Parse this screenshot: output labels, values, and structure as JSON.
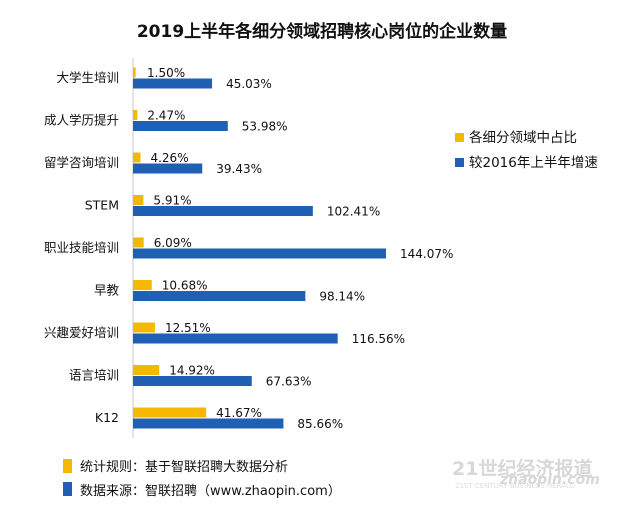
{
  "chart_data": {
    "type": "bar",
    "orientation": "horizontal",
    "title": "2019上半年各细分领域招聘核心岗位的企业数量",
    "categories": [
      "大学生培训",
      "成人学历提升",
      "留学咨询培训",
      "STEM",
      "职业技能培训",
      "早教",
      "兴趣爱好培训",
      "语言培训",
      "K12"
    ],
    "series": [
      {
        "name": "各细分领域中占比",
        "color": "#f5b800",
        "values": [
          1.5,
          2.47,
          4.26,
          5.91,
          6.09,
          10.68,
          12.51,
          14.92,
          41.67
        ],
        "labels": [
          "1.50%",
          "2.47%",
          "4.26%",
          "5.91%",
          "6.09%",
          "10.68%",
          "12.51%",
          "14.92%",
          "41.67%"
        ]
      },
      {
        "name": "较2016年上半年增速",
        "color": "#1f5fb4",
        "values": [
          45.03,
          53.98,
          39.43,
          102.41,
          144.07,
          98.14,
          116.56,
          67.63,
          85.66
        ],
        "labels": [
          "45.03%",
          "53.98%",
          "39.43%",
          "102.41%",
          "144.07%",
          "98.14%",
          "116.56%",
          "67.63%",
          "85.66%"
        ]
      }
    ],
    "xlim": [
      0,
      200
    ],
    "legend_position": "right"
  },
  "footer": {
    "rule_label": "统计规则：基于智联招聘大数据分析",
    "source_label": "数据来源：智联招聘（www.zhaopin.com）"
  },
  "watermark": {
    "main": "21世纪经济报道",
    "sub": "21ST CENTURY BUSINESS HERALD",
    "logo": "zhaopin.com"
  }
}
